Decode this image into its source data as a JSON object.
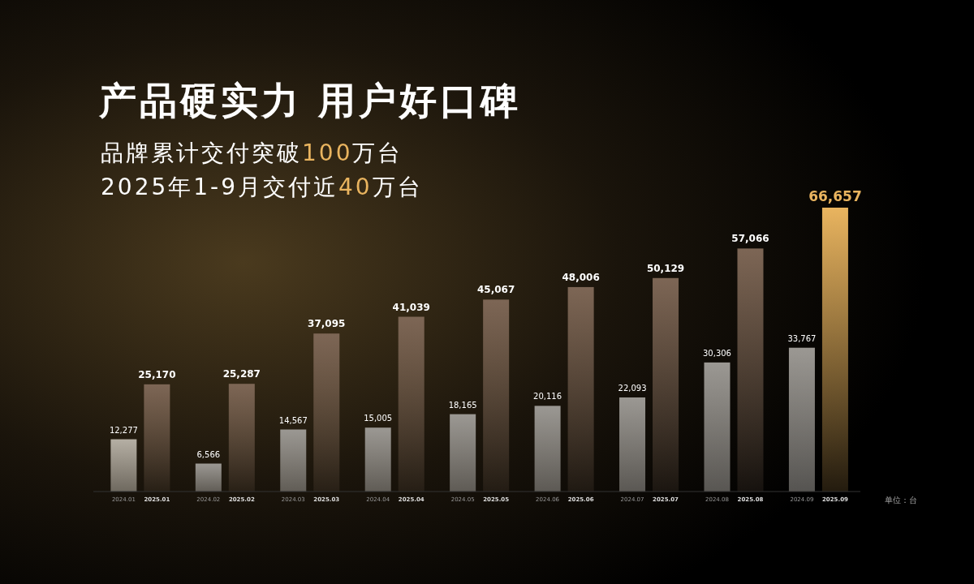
{
  "chart_data": {
    "type": "bar",
    "title": "产品硬实力  用户好口碑",
    "subtitle": "品牌累计交付突破100万台\n2025年1-9月交付近40万台",
    "categories": [
      "2024.01",
      "2025.01",
      "2024.02",
      "2025.02",
      "2024.03",
      "2025.03",
      "2024.04",
      "2025.04",
      "2024.05",
      "2025.05",
      "2024.06",
      "2025.06",
      "2024.07",
      "2025.07",
      "2024.08",
      "2025.08",
      "2024.09",
      "2025.09"
    ],
    "values": [
      12277,
      25170,
      6566,
      25287,
      14567,
      37095,
      15005,
      41039,
      18165,
      45067,
      20116,
      48006,
      22093,
      50129,
      30306,
      57066,
      33767,
      66657
    ],
    "colors": [
      "#b5afa4",
      "#7d6655",
      "#9b9893",
      "#7d6655",
      "#9b9893",
      "#7d6655",
      "#9b9893",
      "#7d6655",
      "#9b9893",
      "#7d6655",
      "#9b9893",
      "#7d6655",
      "#9b9893",
      "#7d6655",
      "#9b9893",
      "#7d6655",
      "#9b9893",
      "#e9b45f"
    ],
    "value_labels": [
      "12,277",
      "25,170",
      "6,566",
      "25,287",
      "14,567",
      "37,095",
      "15,005",
      "41,039",
      "18,165",
      "45,067",
      "20,116",
      "48,006",
      "22,093",
      "50,129",
      "30,306",
      "57,066",
      "33,767",
      "66,657"
    ],
    "annotations": [
      "单位：台"
    ]
  }
}
